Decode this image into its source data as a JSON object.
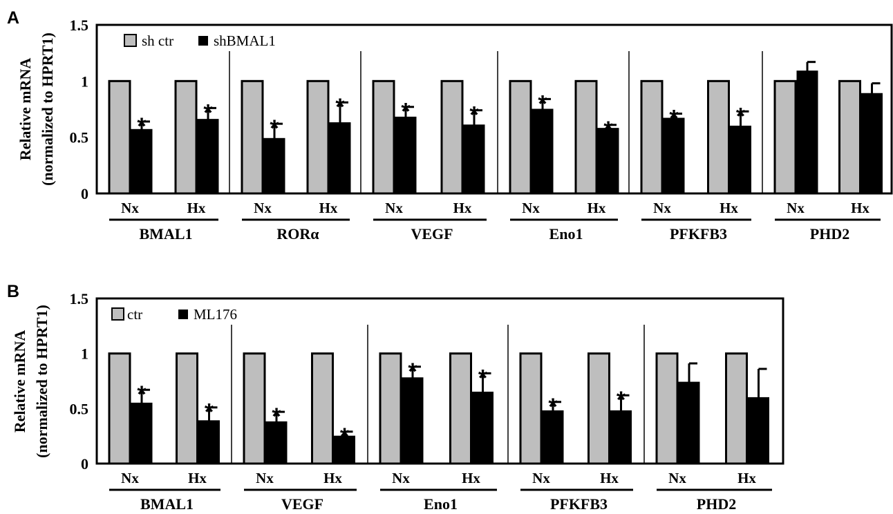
{
  "chart_data": [
    {
      "panel": "A",
      "type": "bar",
      "ylabel": [
        "Relative mRNA",
        "(normalized to HPRT1)"
      ],
      "ylim": [
        0,
        1.5
      ],
      "yticks": [
        "0",
        "0.5",
        "1",
        "1.5"
      ],
      "legend": {
        "placement": "top-left",
        "entries": [
          "sh ctr",
          "shBMAL1"
        ]
      },
      "series_colors": [
        "#bebebe",
        "#000000"
      ],
      "genes": [
        {
          "name": "BMAL1",
          "conditions": [
            {
              "label": "Nx",
              "ctr": 1,
              "treated": 0.57,
              "err": 0.07,
              "star": true
            },
            {
              "label": "Hx",
              "ctr": 1,
              "treated": 0.66,
              "err": 0.1,
              "star": true
            }
          ]
        },
        {
          "name": "RORα",
          "conditions": [
            {
              "label": "Nx",
              "ctr": 1,
              "treated": 0.49,
              "err": 0.13,
              "star": true
            },
            {
              "label": "Hx",
              "ctr": 1,
              "treated": 0.63,
              "err": 0.18,
              "star": true
            }
          ]
        },
        {
          "name": "VEGF",
          "conditions": [
            {
              "label": "Nx",
              "ctr": 1,
              "treated": 0.68,
              "err": 0.09,
              "star": true
            },
            {
              "label": "Hx",
              "ctr": 1,
              "treated": 0.61,
              "err": 0.13,
              "star": true
            }
          ]
        },
        {
          "name": "Eno1",
          "conditions": [
            {
              "label": "Nx",
              "ctr": 1,
              "treated": 0.75,
              "err": 0.09,
              "star": true
            },
            {
              "label": "Hx",
              "ctr": 1,
              "treated": 0.58,
              "err": 0.03,
              "star": true
            }
          ]
        },
        {
          "name": "PFKFB3",
          "conditions": [
            {
              "label": "Nx",
              "ctr": 1,
              "treated": 0.67,
              "err": 0.04,
              "star": true
            },
            {
              "label": "Hx",
              "ctr": 1,
              "treated": 0.6,
              "err": 0.13,
              "star": true
            }
          ]
        },
        {
          "name": "PHD2",
          "conditions": [
            {
              "label": "Nx",
              "ctr": 1,
              "treated": 1.09,
              "err": 0.08,
              "star": false
            },
            {
              "label": "Hx",
              "ctr": 1,
              "treated": 0.89,
              "err": 0.09,
              "star": false
            }
          ]
        }
      ]
    },
    {
      "panel": "B",
      "type": "bar",
      "ylabel": [
        "Relative mRNA",
        "(normalized to HPRT1)"
      ],
      "ylim": [
        0,
        1.5
      ],
      "yticks": [
        "0",
        "0.5",
        "1",
        "1.5"
      ],
      "legend": {
        "placement": "top-left",
        "entries": [
          "ctr",
          "ML176"
        ]
      },
      "series_colors": [
        "#bebebe",
        "#000000"
      ],
      "genes": [
        {
          "name": "BMAL1",
          "conditions": [
            {
              "label": "Nx",
              "ctr": 1,
              "treated": 0.55,
              "err": 0.12,
              "star": true
            },
            {
              "label": "Hx",
              "ctr": 1,
              "treated": 0.39,
              "err": 0.12,
              "star": true
            }
          ]
        },
        {
          "name": "VEGF",
          "conditions": [
            {
              "label": "Nx",
              "ctr": 1,
              "treated": 0.38,
              "err": 0.09,
              "star": true
            },
            {
              "label": "Hx",
              "ctr": 1,
              "treated": 0.25,
              "err": 0.04,
              "star": true
            }
          ]
        },
        {
          "name": "Eno1",
          "conditions": [
            {
              "label": "Nx",
              "ctr": 1,
              "treated": 0.78,
              "err": 0.1,
              "star": true
            },
            {
              "label": "Hx",
              "ctr": 1,
              "treated": 0.65,
              "err": 0.17,
              "star": true
            }
          ]
        },
        {
          "name": "PFKFB3",
          "conditions": [
            {
              "label": "Nx",
              "ctr": 1,
              "treated": 0.48,
              "err": 0.08,
              "star": true
            },
            {
              "label": "Hx",
              "ctr": 1,
              "treated": 0.48,
              "err": 0.14,
              "star": true
            }
          ]
        },
        {
          "name": "PHD2",
          "conditions": [
            {
              "label": "Nx",
              "ctr": 1,
              "treated": 0.74,
              "err": 0.17,
              "star": false
            },
            {
              "label": "Hx",
              "ctr": 1,
              "treated": 0.6,
              "err": 0.26,
              "star": false
            }
          ]
        }
      ]
    }
  ]
}
